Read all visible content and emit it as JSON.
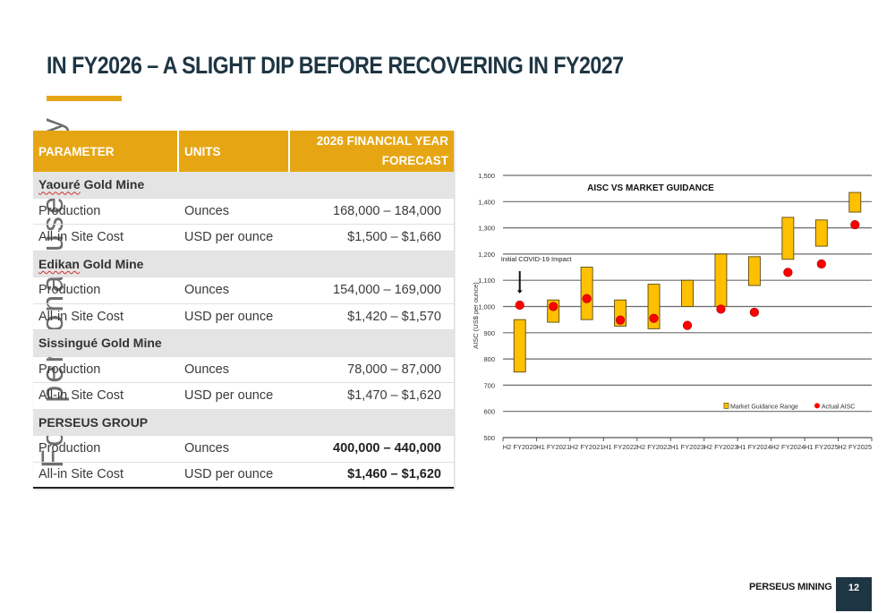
{
  "slide": {
    "title": "IN FY2026 – A SLIGHT DIP BEFORE RECOVERING IN FY2027",
    "watermark": "For personal use only",
    "accent_color": "#e6a614",
    "navy_color": "#1e3543"
  },
  "table": {
    "headers": [
      "PARAMETER",
      "UNITS",
      "2026 FINANCIAL YEAR FORECAST"
    ],
    "sections": [
      {
        "name": "Yaouré Gold Mine",
        "rows": [
          {
            "parameter": "Production",
            "units": "Ounces",
            "forecast": "168,000 – 184,000"
          },
          {
            "parameter": "All-in Site Cost",
            "units": "USD per ounce",
            "forecast": "$1,500 – $1,660"
          }
        ]
      },
      {
        "name": "Edikan Gold Mine",
        "rows": [
          {
            "parameter": "Production",
            "units": "Ounces",
            "forecast": "154,000 – 169,000"
          },
          {
            "parameter": "All-in Site Cost",
            "units": "USD per ounce",
            "forecast": "$1,420 – $1,570"
          }
        ]
      },
      {
        "name": "Sissingué Gold Mine",
        "rows": [
          {
            "parameter": "Production",
            "units": "Ounces",
            "forecast": "78,000 – 87,000"
          },
          {
            "parameter": "All-in Site Cost",
            "units": "USD per ounce",
            "forecast": "$1,470 – $1,620"
          }
        ]
      },
      {
        "name": "PERSEUS GROUP",
        "rows": [
          {
            "parameter": "Production",
            "units": "Ounces",
            "forecast": "400,000 – 440,000"
          },
          {
            "parameter": "All-in Site Cost",
            "units": "USD per ounce",
            "forecast": "$1,460 – $1,620"
          }
        ]
      }
    ]
  },
  "chart_data": {
    "type": "bar",
    "subtype": "floating-range-with-markers",
    "title": "AISC VS MARKET GUIDANCE",
    "xlabel": "",
    "ylabel": "AISC (US$ per ounce)",
    "ylim": [
      500,
      1500
    ],
    "yticks": [
      500,
      600,
      700,
      800,
      900,
      1000,
      1100,
      1200,
      1300,
      1400,
      1500
    ],
    "ytick_labels": [
      "500",
      "600",
      "700",
      "800",
      "900",
      "1,000",
      "1,100",
      "1,200",
      "1,300",
      "1,400",
      "1,500"
    ],
    "grid": true,
    "categories": [
      "H2 FY2020",
      "H1 FY2021",
      "H2 FY2021",
      "H1 FY2022",
      "H2 FY2022",
      "H1 FY2023",
      "H2 FY2023",
      "H1 FY2024",
      "H2 FY2024",
      "H1 FY2025",
      "H2 FY2025"
    ],
    "series": [
      {
        "name": "Market Guidance Range",
        "color": "#ffc000",
        "low": [
          750,
          940,
          950,
          925,
          915,
          1000,
          1000,
          1080,
          1180,
          1230,
          1360
        ],
        "high": [
          950,
          1025,
          1150,
          1025,
          1085,
          1100,
          1200,
          1190,
          1340,
          1330,
          1435
        ]
      },
      {
        "name": "Actual AISC",
        "color": "#ff0000",
        "values": [
          1005,
          1000,
          1030,
          948,
          955,
          928,
          990,
          978,
          1130,
          1162,
          1312
        ]
      }
    ],
    "annotations": [
      {
        "text": "Initial COVID-19 Impact",
        "category": "H2 FY2020",
        "arrow": "down"
      }
    ],
    "legend": {
      "position": "bottom-right",
      "entries": [
        "Market Guidance Range",
        "Actual AISC"
      ]
    }
  },
  "footer": {
    "brand": "PERSEUS MINING",
    "page_number": "12"
  }
}
